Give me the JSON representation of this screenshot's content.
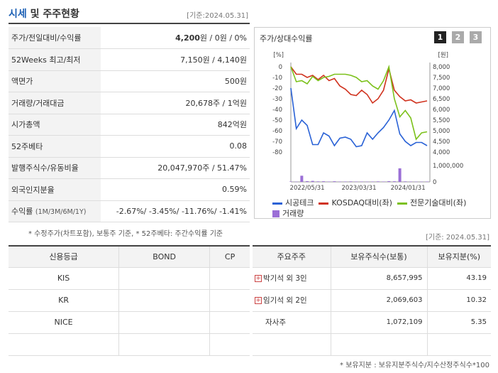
{
  "header": {
    "title_main": "시세",
    "title_rest": "및 주주현황",
    "base_date": "[기준:2024.05.31]"
  },
  "quote": [
    {
      "label": "주가/전일대비/수익률",
      "value_bold": "4,200",
      "value_rest": "원 / 0원 / 0%"
    },
    {
      "label": "52Weeks 최고/최저",
      "value": "7,150원 / 4,140원"
    },
    {
      "label": "액면가",
      "value": "500원"
    },
    {
      "label": "거래량/거래대금",
      "value": "20,678주 / 1억원"
    },
    {
      "label": "시가총액",
      "value": "842억원"
    },
    {
      "label": "52주베타",
      "value": "0.08"
    },
    {
      "label": "발행주식수/유동비율",
      "value": "20,047,970주 / 51.47%"
    },
    {
      "label": "외국인지분율",
      "value": "0.59%"
    },
    {
      "label": "수익률",
      "label_small": "(1M/3M/6M/1Y)",
      "value": "-2.67%/ -3.45%/ -11.76%/ -1.41%"
    }
  ],
  "quote_note": "* 수정주가(차트포함), 보통주 기준, * 52주베타: 주간수익률 기준",
  "chart_panel": {
    "title": "주가/상대수익률",
    "period_buttons": [
      "1",
      "2",
      "3"
    ],
    "active_period": 0
  },
  "chart_data": {
    "type": "line",
    "left_axis_unit": "[%]",
    "right_axis_unit": "[원]",
    "left_ticks": [
      "0",
      "-10",
      "-20",
      "-30",
      "-40",
      "-50",
      "-60",
      "-70",
      "-80"
    ],
    "right_ticks": [
      "8,000",
      "7,500",
      "7,000",
      "6,500",
      "6,000",
      "5,500",
      "5,000",
      "4,500",
      "4,000"
    ],
    "volume_ticks": [
      "1,000,000",
      "0"
    ],
    "x_ticks": [
      "2022/05/31",
      "2023/03/31",
      "2024/01/31"
    ],
    "ylim_left": [
      -80,
      0
    ],
    "ylim_right": [
      4000,
      8000
    ],
    "series": [
      {
        "name": "시공테크",
        "color": "#2a62d6",
        "axis": "left",
        "values": [
          -20,
          -58,
          -50,
          -55,
          -73,
          -73,
          -62,
          -65,
          -74,
          -67,
          -66,
          -68,
          -75,
          -74,
          -62,
          -68,
          -62,
          -57,
          -50,
          -41,
          -63,
          -70,
          -74,
          -71,
          -71,
          -74
        ]
      },
      {
        "name": "KOSDAQ대비(좌)",
        "color": "#d0321e",
        "axis": "right",
        "values": [
          8000,
          7650,
          7650,
          7500,
          7600,
          7400,
          7600,
          7350,
          7450,
          7100,
          6950,
          6700,
          6650,
          6900,
          6700,
          6300,
          6500,
          6900,
          7900,
          6900,
          6600,
          6400,
          6450,
          6300,
          6350,
          6400
        ]
      },
      {
        "name": "전문기술대비(좌)",
        "color": "#7cc11b",
        "axis": "right",
        "values": [
          8000,
          7300,
          7350,
          7200,
          7550,
          7350,
          7500,
          7550,
          7650,
          7650,
          7650,
          7600,
          7500,
          7300,
          7350,
          7100,
          6950,
          7350,
          8000,
          6500,
          5650,
          5950,
          5600,
          4600,
          4900,
          4950
        ]
      }
    ],
    "volume": {
      "name": "거래량",
      "color": "#9b6fd6",
      "max": 1500000,
      "values": [
        30000,
        20000,
        500000,
        60000,
        80000,
        40000,
        50000,
        30000,
        50000,
        30000,
        30000,
        40000,
        30000,
        30000,
        20000,
        30000,
        40000,
        30000,
        60000,
        50000,
        1100000,
        40000,
        30000,
        20000,
        20000,
        30000
      ]
    }
  },
  "credit_table": {
    "headers": [
      "신용등급",
      "BOND",
      "CP"
    ],
    "rows": [
      [
        "KIS",
        "",
        ""
      ],
      [
        "KR",
        "",
        ""
      ],
      [
        "NICE",
        "",
        ""
      ],
      [
        "",
        "",
        ""
      ]
    ]
  },
  "holders": {
    "base_date": "[기준: 2024.05.31]",
    "headers": [
      "주요주주",
      "보유주식수(보통)",
      "보유지분(%)"
    ],
    "rows": [
      {
        "name": "박기석 외 3인",
        "shares": "8,657,995",
        "pct": "43.19",
        "expand": "+"
      },
      {
        "name": "임기석 외 2인",
        "shares": "2,069,603",
        "pct": "10.32",
        "expand": "+"
      },
      {
        "name": "자사주",
        "shares": "1,072,109",
        "pct": "5.35",
        "expand": ""
      }
    ],
    "note": "* 보유지분 : 보유지분주식수/지수산정주식수*100"
  }
}
